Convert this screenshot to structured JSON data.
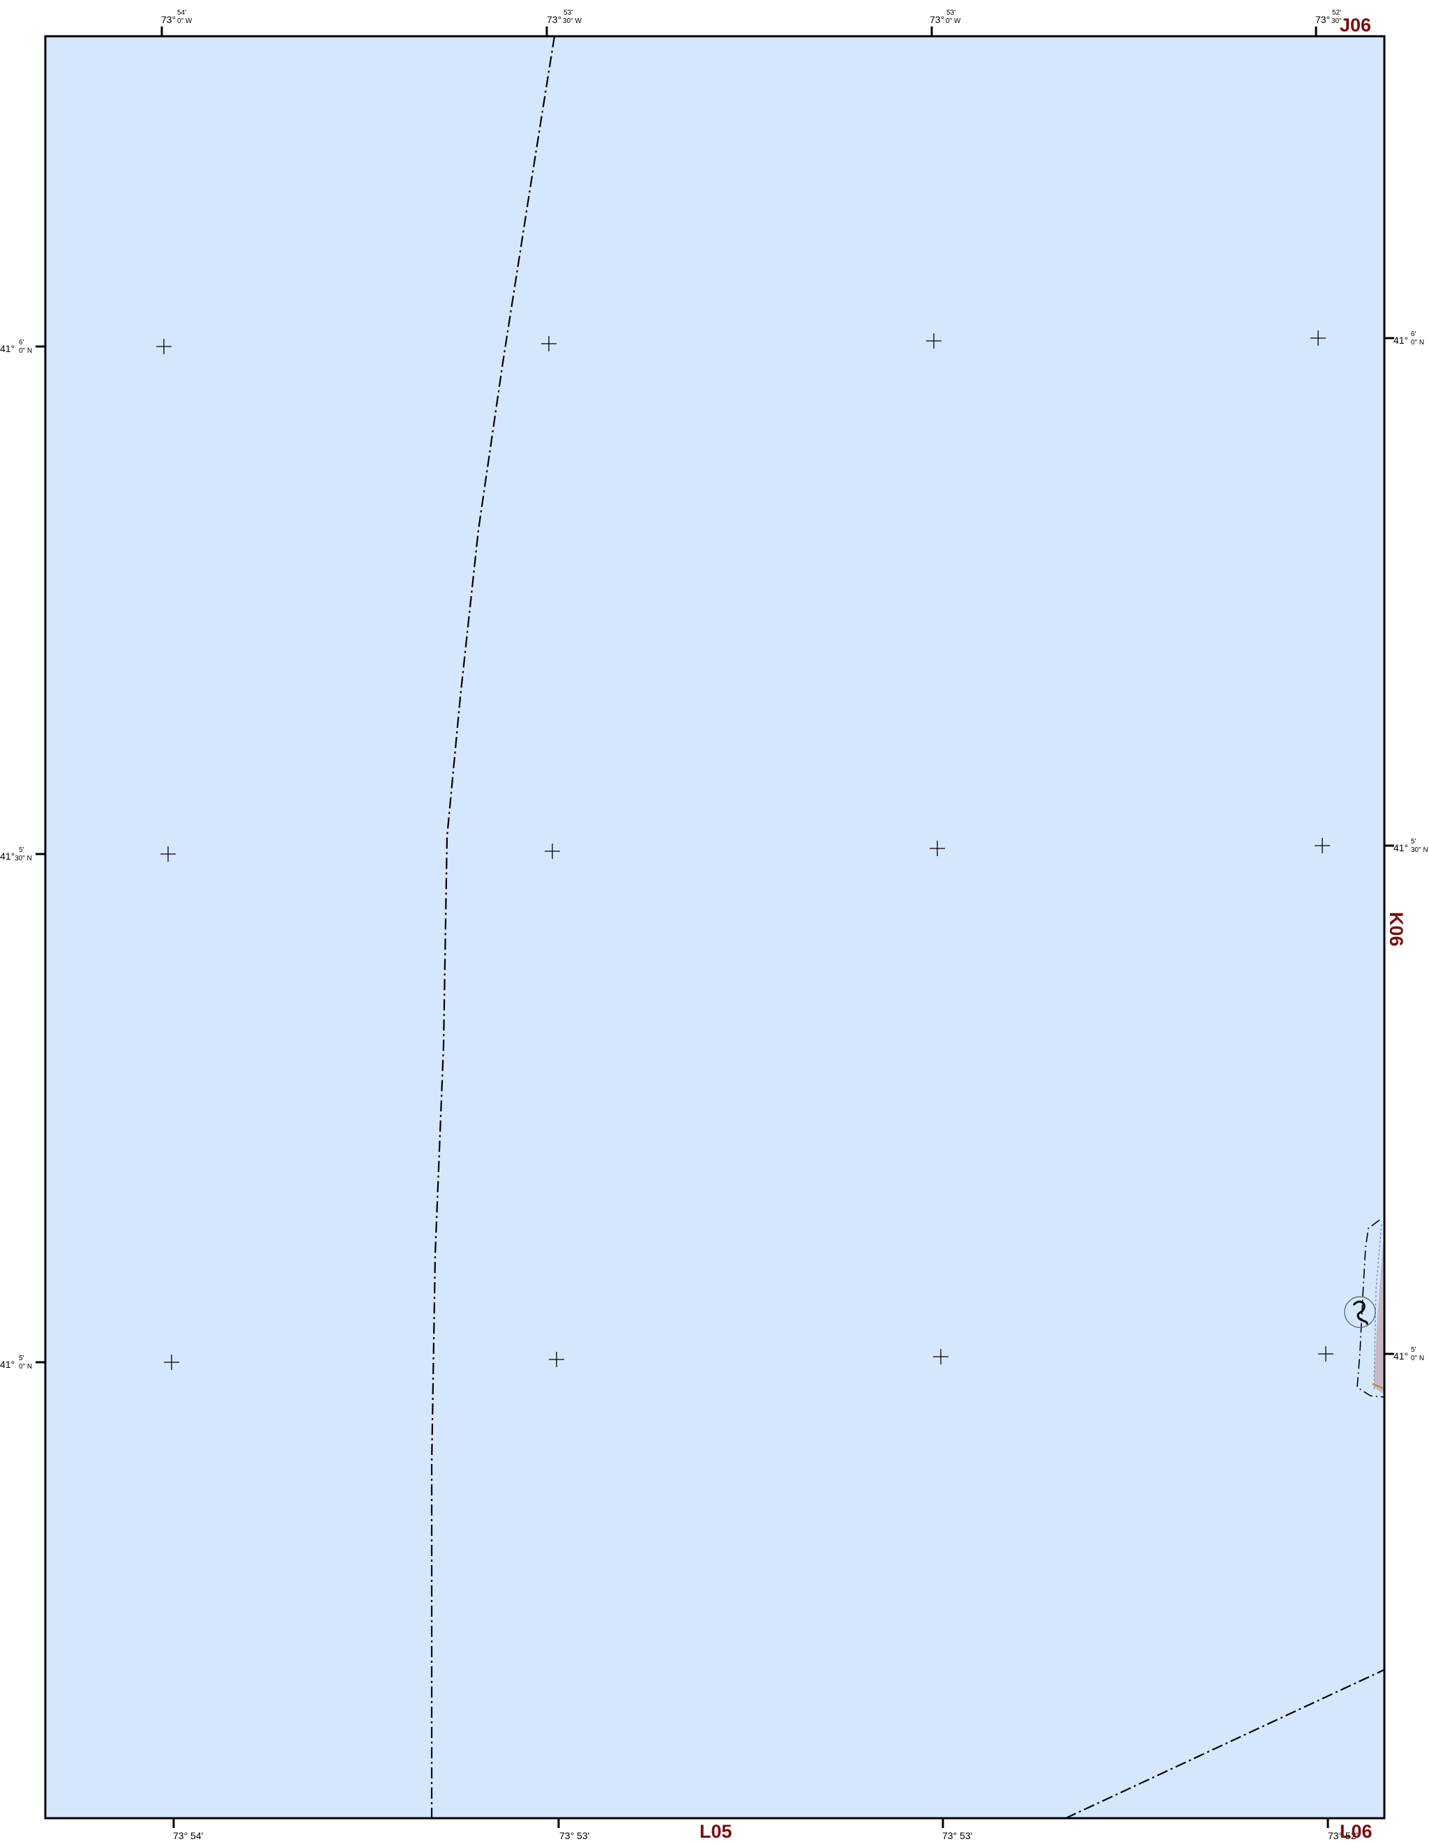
{
  "map": {
    "water_color": "#d4e7fd",
    "frame_color": "#000000",
    "sheet_ref_color": "#7a0e0e",
    "adjacent_sheets": {
      "top_right": "J06",
      "right": "K06",
      "bottom": "L05",
      "bottom_right": "L06"
    },
    "top_ticks": [
      {
        "deg": "73°",
        "min": "54'",
        "sec": "0\" W"
      },
      {
        "deg": "73°",
        "min": "53'",
        "sec": "30\" W"
      },
      {
        "deg": "73°",
        "min": "53'",
        "sec": "0\" W"
      },
      {
        "deg": "73°",
        "min": "52'",
        "sec": "30\""
      }
    ],
    "bottom_ticks": [
      {
        "text": "73° 54'"
      },
      {
        "text": "73° 53'"
      },
      {
        "text": "73° 53'"
      },
      {
        "text": "73° 52'"
      }
    ],
    "left_ticks": [
      {
        "deg": "41°",
        "min": "6'",
        "sec": "0\" N"
      },
      {
        "deg": "41°",
        "min": "5'",
        "sec": "30\" N"
      },
      {
        "deg": "41°",
        "min": "5'",
        "sec": "0\" N"
      }
    ],
    "right_ticks": [
      {
        "deg": "41°",
        "min": "6'",
        "sec": "0\" N"
      },
      {
        "deg": "41°",
        "min": "5'",
        "sec": "30\" N"
      },
      {
        "deg": "41°",
        "min": "5'",
        "sec": "0\" N"
      }
    ]
  }
}
